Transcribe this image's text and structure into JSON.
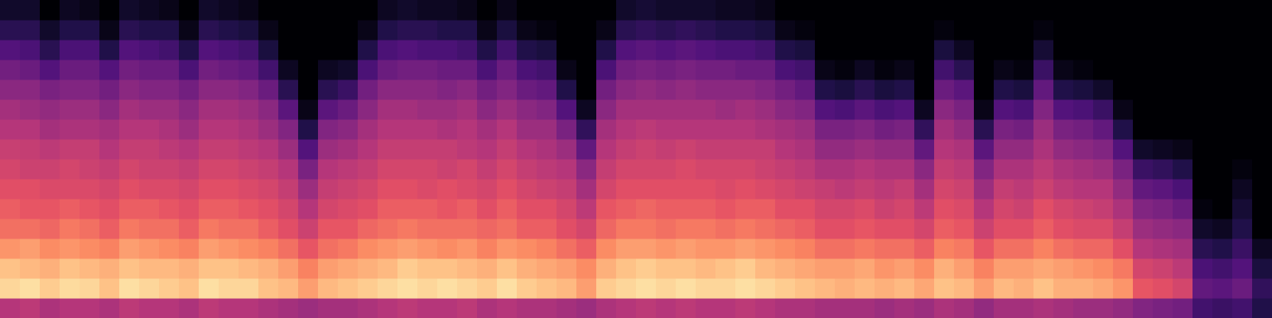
{
  "chart_data": {
    "type": "heatmap",
    "tick_labels": false,
    "color_range": [
      0,
      100
    ],
    "values": [
      [
        50,
        92,
        88,
        78,
        70,
        66,
        62,
        58,
        55,
        50,
        46,
        40,
        34,
        26,
        16,
        8
      ],
      [
        52,
        94,
        86,
        80,
        70,
        64,
        62,
        56,
        54,
        50,
        44,
        40,
        32,
        24,
        16,
        8
      ],
      [
        48,
        90,
        84,
        76,
        68,
        64,
        60,
        56,
        52,
        46,
        42,
        36,
        26,
        16,
        8,
        0
      ],
      [
        50,
        93,
        88,
        78,
        72,
        66,
        60,
        58,
        54,
        48,
        44,
        38,
        32,
        24,
        14,
        6
      ],
      [
        50,
        92,
        86,
        76,
        70,
        64,
        60,
        56,
        54,
        48,
        44,
        38,
        32,
        24,
        14,
        4
      ],
      [
        48,
        88,
        84,
        74,
        66,
        62,
        58,
        54,
        50,
        46,
        40,
        34,
        26,
        14,
        4,
        0
      ],
      [
        52,
        94,
        88,
        80,
        72,
        66,
        62,
        58,
        54,
        50,
        46,
        40,
        34,
        26,
        16,
        8
      ],
      [
        50,
        92,
        86,
        78,
        70,
        66,
        60,
        56,
        54,
        50,
        44,
        38,
        32,
        24,
        14,
        6
      ],
      [
        50,
        90,
        86,
        76,
        70,
        64,
        60,
        56,
        52,
        48,
        44,
        38,
        32,
        22,
        14,
        4
      ],
      [
        48,
        88,
        84,
        74,
        66,
        62,
        58,
        54,
        50,
        44,
        40,
        34,
        24,
        14,
        4,
        0
      ],
      [
        52,
        94,
        88,
        80,
        72,
        66,
        62,
        58,
        54,
        50,
        46,
        40,
        34,
        26,
        16,
        8
      ],
      [
        50,
        92,
        88,
        78,
        70,
        66,
        62,
        58,
        54,
        50,
        46,
        40,
        32,
        24,
        14,
        6
      ],
      [
        50,
        92,
        86,
        76,
        70,
        64,
        60,
        56,
        52,
        48,
        44,
        38,
        30,
        22,
        12,
        4
      ],
      [
        48,
        88,
        84,
        74,
        66,
        62,
        58,
        54,
        50,
        44,
        40,
        32,
        22,
        12,
        4,
        0
      ],
      [
        46,
        86,
        80,
        70,
        62,
        58,
        54,
        50,
        44,
        38,
        28,
        16,
        6,
        0,
        0,
        0
      ],
      [
        44,
        80,
        74,
        64,
        56,
        50,
        44,
        36,
        26,
        14,
        4,
        0,
        0,
        0,
        0,
        0
      ],
      [
        46,
        86,
        80,
        70,
        64,
        58,
        54,
        50,
        44,
        38,
        28,
        16,
        6,
        0,
        0,
        0
      ],
      [
        46,
        88,
        82,
        72,
        64,
        60,
        56,
        52,
        46,
        40,
        32,
        20,
        8,
        0,
        0,
        0
      ],
      [
        48,
        90,
        84,
        76,
        68,
        62,
        58,
        54,
        50,
        46,
        40,
        34,
        24,
        14,
        4,
        0
      ],
      [
        50,
        92,
        86,
        78,
        70,
        66,
        62,
        58,
        54,
        50,
        46,
        40,
        32,
        24,
        14,
        6
      ],
      [
        52,
        94,
        90,
        80,
        72,
        66,
        62,
        58,
        54,
        50,
        46,
        40,
        34,
        26,
        16,
        8
      ],
      [
        50,
        92,
        88,
        78,
        70,
        66,
        60,
        58,
        54,
        50,
        44,
        40,
        34,
        24,
        16,
        6
      ],
      [
        50,
        94,
        88,
        76,
        70,
        64,
        62,
        56,
        54,
        48,
        44,
        38,
        32,
        24,
        14,
        6
      ],
      [
        52,
        92,
        86,
        78,
        70,
        66,
        60,
        58,
        52,
        50,
        46,
        40,
        32,
        22,
        14,
        4
      ],
      [
        48,
        90,
        84,
        74,
        68,
        62,
        58,
        54,
        50,
        46,
        40,
        34,
        24,
        14,
        4,
        0
      ],
      [
        50,
        94,
        88,
        78,
        70,
        66,
        62,
        58,
        54,
        50,
        44,
        38,
        32,
        22,
        12,
        4
      ],
      [
        48,
        90,
        84,
        76,
        66,
        62,
        58,
        54,
        50,
        44,
        40,
        32,
        24,
        14,
        4,
        0
      ],
      [
        48,
        88,
        82,
        74,
        66,
        62,
        56,
        52,
        48,
        44,
        38,
        30,
        22,
        12,
        2,
        0
      ],
      [
        46,
        86,
        80,
        70,
        62,
        58,
        54,
        50,
        44,
        36,
        26,
        14,
        4,
        0,
        0,
        0
      ],
      [
        44,
        80,
        76,
        66,
        58,
        52,
        46,
        40,
        30,
        18,
        6,
        0,
        0,
        0,
        0,
        0
      ],
      [
        48,
        90,
        84,
        76,
        68,
        64,
        58,
        54,
        50,
        46,
        40,
        34,
        24,
        14,
        4,
        0
      ],
      [
        50,
        92,
        88,
        80,
        72,
        66,
        62,
        58,
        54,
        50,
        46,
        40,
        34,
        26,
        16,
        8
      ],
      [
        52,
        94,
        90,
        80,
        72,
        68,
        62,
        58,
        56,
        52,
        46,
        42,
        36,
        28,
        18,
        10
      ],
      [
        50,
        92,
        88,
        78,
        70,
        66,
        62,
        58,
        54,
        50,
        46,
        40,
        34,
        26,
        16,
        8
      ],
      [
        52,
        94,
        88,
        80,
        72,
        66,
        62,
        60,
        56,
        50,
        46,
        42,
        36,
        28,
        18,
        8
      ],
      [
        50,
        92,
        86,
        78,
        72,
        66,
        62,
        58,
        54,
        50,
        46,
        40,
        34,
        26,
        16,
        8
      ],
      [
        50,
        92,
        88,
        78,
        70,
        64,
        60,
        58,
        54,
        50,
        44,
        40,
        34,
        24,
        14,
        6
      ],
      [
        52,
        94,
        90,
        80,
        72,
        66,
        62,
        58,
        54,
        50,
        46,
        40,
        32,
        24,
        14,
        6
      ],
      [
        50,
        92,
        86,
        78,
        70,
        66,
        60,
        56,
        54,
        48,
        44,
        38,
        32,
        22,
        12,
        4
      ],
      [
        48,
        90,
        84,
        76,
        68,
        62,
        58,
        54,
        50,
        46,
        40,
        34,
        24,
        14,
        4,
        0
      ],
      [
        48,
        88,
        82,
        74,
        66,
        62,
        56,
        52,
        48,
        44,
        38,
        30,
        22,
        12,
        2,
        0
      ],
      [
        46,
        86,
        80,
        70,
        62,
        58,
        54,
        48,
        42,
        36,
        26,
        14,
        4,
        0,
        0,
        0
      ],
      [
        46,
        84,
        80,
        70,
        62,
        58,
        52,
        48,
        42,
        36,
        24,
        12,
        2,
        0,
        0,
        0
      ],
      [
        46,
        86,
        82,
        72,
        64,
        60,
        54,
        50,
        44,
        38,
        28,
        16,
        6,
        0,
        0,
        0
      ],
      [
        44,
        84,
        78,
        70,
        62,
        56,
        52,
        48,
        42,
        34,
        24,
        12,
        2,
        0,
        0,
        0
      ],
      [
        46,
        86,
        80,
        70,
        62,
        58,
        54,
        48,
        42,
        36,
        26,
        14,
        4,
        0,
        0,
        0
      ],
      [
        44,
        82,
        76,
        66,
        58,
        52,
        46,
        40,
        30,
        18,
        6,
        0,
        0,
        0,
        0,
        0
      ],
      [
        48,
        88,
        84,
        74,
        66,
        62,
        58,
        54,
        50,
        46,
        40,
        32,
        22,
        12,
        2,
        0
      ],
      [
        46,
        86,
        80,
        72,
        64,
        60,
        56,
        52,
        48,
        42,
        36,
        28,
        16,
        6,
        0,
        0
      ],
      [
        42,
        80,
        74,
        64,
        56,
        50,
        44,
        38,
        28,
        16,
        4,
        0,
        0,
        0,
        0,
        0
      ],
      [
        46,
        86,
        80,
        70,
        62,
        58,
        54,
        48,
        42,
        36,
        26,
        14,
        4,
        0,
        0,
        0
      ],
      [
        46,
        84,
        80,
        70,
        62,
        56,
        52,
        48,
        42,
        34,
        24,
        12,
        2,
        0,
        0,
        0
      ],
      [
        48,
        88,
        82,
        74,
        66,
        62,
        56,
        52,
        48,
        44,
        38,
        30,
        20,
        10,
        2,
        0
      ],
      [
        46,
        84,
        80,
        70,
        62,
        58,
        52,
        48,
        42,
        36,
        26,
        14,
        4,
        0,
        0,
        0
      ],
      [
        44,
        84,
        78,
        68,
        60,
        56,
        50,
        46,
        40,
        34,
        24,
        12,
        2,
        0,
        0,
        0
      ],
      [
        44,
        82,
        76,
        68,
        60,
        54,
        50,
        44,
        38,
        30,
        20,
        8,
        0,
        0,
        0,
        0
      ],
      [
        42,
        78,
        72,
        62,
        54,
        48,
        42,
        36,
        26,
        14,
        4,
        0,
        0,
        0,
        0,
        0
      ],
      [
        38,
        64,
        58,
        50,
        44,
        38,
        30,
        20,
        8,
        0,
        0,
        0,
        0,
        0,
        0,
        0
      ],
      [
        36,
        62,
        56,
        48,
        42,
        36,
        28,
        18,
        6,
        0,
        0,
        0,
        0,
        0,
        0,
        0
      ],
      [
        34,
        58,
        52,
        46,
        40,
        32,
        24,
        14,
        4,
        0,
        0,
        0,
        0,
        0,
        0,
        0
      ],
      [
        22,
        30,
        24,
        16,
        8,
        2,
        0,
        0,
        0,
        0,
        0,
        0,
        0,
        0,
        0,
        0
      ],
      [
        20,
        28,
        22,
        14,
        6,
        0,
        0,
        0,
        0,
        0,
        0,
        0,
        0,
        0,
        0,
        0
      ],
      [
        22,
        32,
        26,
        20,
        14,
        10,
        6,
        2,
        0,
        0,
        0,
        0,
        0,
        0,
        0,
        0
      ],
      [
        14,
        18,
        12,
        6,
        0,
        0,
        0,
        0,
        0,
        0,
        0,
        0,
        0,
        0,
        0,
        0
      ]
    ]
  }
}
